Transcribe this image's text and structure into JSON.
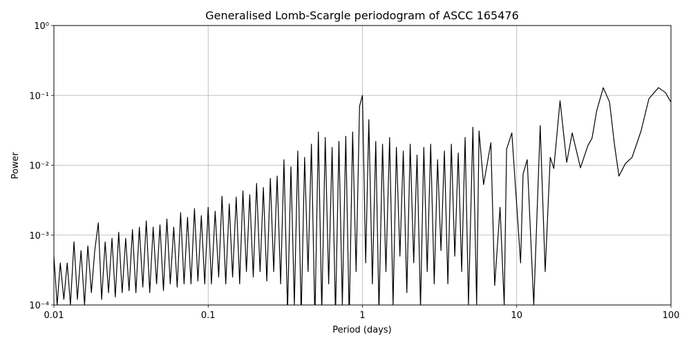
{
  "chart_data": {
    "type": "line",
    "title": "Generalised Lomb-Scargle periodogram of ASCC 165476",
    "x_label": "Period (days)",
    "y_label": "Power",
    "x_scale": "log",
    "y_scale": "log",
    "grid": true,
    "xlim": [
      0.01,
      100
    ],
    "ylim": [
      0.0001,
      1
    ],
    "xticks": [
      0.01,
      0.1,
      1,
      10,
      100
    ],
    "yticks": [
      {
        "value": 0.0001,
        "label": "10⁻⁴"
      },
      {
        "value": 0.001,
        "label": "10⁻³"
      },
      {
        "value": 0.01,
        "label": "10⁻²"
      },
      {
        "value": 0.1,
        "label": "10⁻¹"
      },
      {
        "value": 1,
        "label": "10⁰"
      }
    ],
    "series": [
      {
        "color": "#000000",
        "x": [
          0.01,
          0.0105,
          0.011,
          0.0116,
          0.0122,
          0.0128,
          0.0135,
          0.0142,
          0.015,
          0.0158,
          0.0166,
          0.0175,
          0.0184,
          0.0194,
          0.0204,
          0.0215,
          0.0226,
          0.0238,
          0.025,
          0.0263,
          0.0277,
          0.0292,
          0.0307,
          0.0323,
          0.034,
          0.0358,
          0.0377,
          0.0397,
          0.0418,
          0.044,
          0.0463,
          0.0487,
          0.0513,
          0.054,
          0.0568,
          0.0598,
          0.063,
          0.0663,
          0.0698,
          0.0735,
          0.0774,
          0.0815,
          0.0858,
          0.0903,
          0.095,
          0.1,
          0.105,
          0.111,
          0.117,
          0.123,
          0.13,
          0.137,
          0.144,
          0.152,
          0.16,
          0.168,
          0.177,
          0.186,
          0.196,
          0.206,
          0.217,
          0.228,
          0.24,
          0.253,
          0.266,
          0.28,
          0.295,
          0.31,
          0.327,
          0.344,
          0.362,
          0.381,
          0.401,
          0.422,
          0.444,
          0.467,
          0.492,
          0.518,
          0.545,
          0.574,
          0.604,
          0.636,
          0.669,
          0.704,
          0.741,
          0.78,
          0.821,
          0.864,
          0.91,
          0.958,
          1.0,
          1.05,
          1.1,
          1.16,
          1.22,
          1.28,
          1.35,
          1.42,
          1.5,
          1.58,
          1.66,
          1.75,
          1.84,
          1.94,
          2.04,
          2.15,
          2.26,
          2.38,
          2.5,
          2.63,
          2.77,
          2.92,
          3.07,
          3.23,
          3.4,
          3.58,
          3.77,
          3.97,
          4.18,
          4.4,
          4.63,
          4.87,
          5.2,
          5.5,
          5.7,
          6.1,
          6.8,
          7.2,
          7.8,
          8.3,
          8.6,
          9.3,
          10.6,
          11.0,
          11.7,
          12.9,
          14.2,
          15.3,
          16.5,
          17.4,
          19.1,
          21.1,
          22.9,
          25.9,
          28.9,
          30.8,
          33,
          36.4,
          40,
          43,
          46,
          50.7,
          56,
          64,
          72,
          83,
          92,
          100
        ],
        "values": [
          0.0005,
          0.0001,
          0.0004,
          0.00012,
          0.0004,
          0.0001,
          0.0008,
          0.00012,
          0.0006,
          0.0001,
          0.0007,
          0.00015,
          0.0006,
          0.0015,
          0.00012,
          0.0008,
          0.00015,
          0.0009,
          0.00013,
          0.0011,
          0.00015,
          0.0009,
          0.00016,
          0.0012,
          0.00015,
          0.0013,
          0.00018,
          0.0016,
          0.00015,
          0.0013,
          0.0002,
          0.0014,
          0.00016,
          0.0017,
          0.0002,
          0.0013,
          0.00018,
          0.0021,
          0.0002,
          0.0018,
          0.0002,
          0.0024,
          0.00022,
          0.0019,
          0.0002,
          0.0025,
          0.0002,
          0.0022,
          0.00025,
          0.0036,
          0.0002,
          0.0028,
          0.00025,
          0.0035,
          0.0002,
          0.0043,
          0.0003,
          0.0038,
          0.00025,
          0.0055,
          0.0003,
          0.0048,
          0.00022,
          0.0065,
          0.0003,
          0.007,
          0.0002,
          0.012,
          8e-05,
          0.0095,
          0.0001,
          0.016,
          7e-05,
          0.013,
          0.0003,
          0.02,
          6e-05,
          0.03,
          8e-05,
          0.025,
          0.0002,
          0.018,
          7e-05,
          0.022,
          0.0001,
          0.026,
          6e-05,
          0.03,
          0.0003,
          0.07,
          0.1,
          0.0004,
          0.045,
          0.0002,
          0.022,
          8e-05,
          0.02,
          0.0003,
          0.025,
          0.0001,
          0.018,
          0.0005,
          0.016,
          0.00015,
          0.02,
          0.0004,
          0.014,
          9e-05,
          0.018,
          0.0003,
          0.02,
          0.0002,
          0.012,
          0.0006,
          0.016,
          0.0002,
          0.02,
          0.0005,
          0.015,
          0.0003,
          0.025,
          0.0001,
          0.035,
          0.0001,
          0.031,
          0.0053,
          0.021,
          0.00019,
          0.0025,
          0.0001,
          0.017,
          0.029,
          0.0004,
          0.0075,
          0.012,
          0.0001,
          0.037,
          0.0003,
          0.013,
          0.009,
          0.084,
          0.011,
          0.029,
          0.0092,
          0.019,
          0.0245,
          0.06,
          0.129,
          0.08,
          0.02,
          0.007,
          0.0106,
          0.013,
          0.031,
          0.09,
          0.129,
          0.11,
          0.08
        ]
      }
    ]
  }
}
